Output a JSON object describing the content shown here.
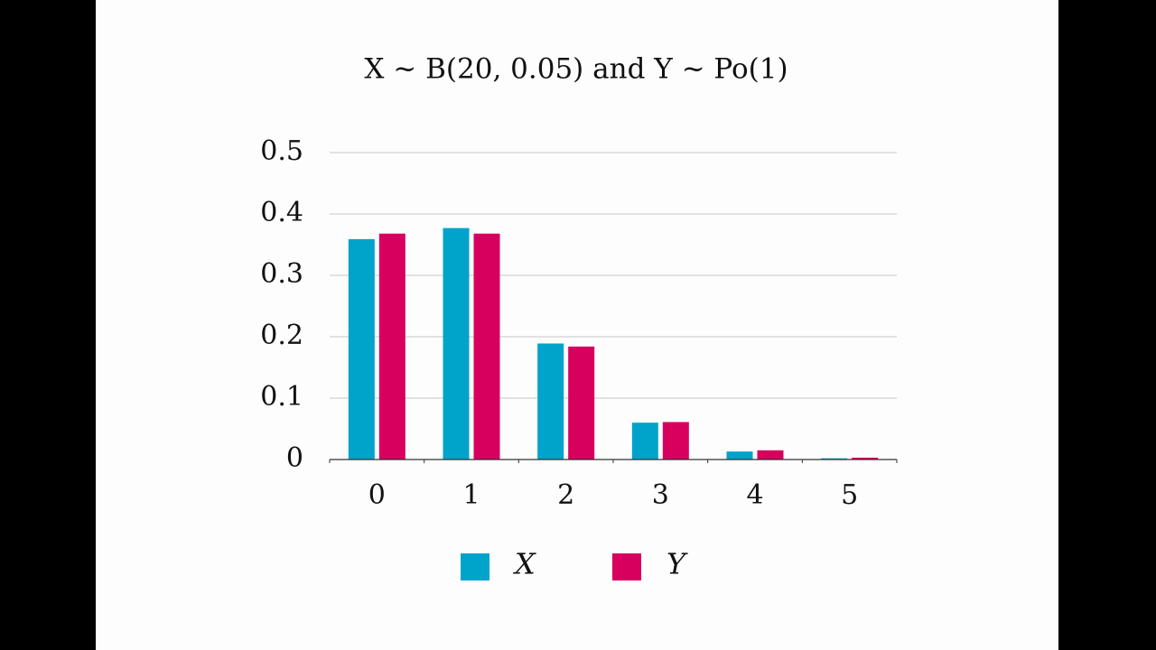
{
  "chart_data": {
    "type": "bar",
    "title": "X ~ B(20, 0.05) and Y ~ Po(1)",
    "categories": [
      "0",
      "1",
      "2",
      "3",
      "4",
      "5"
    ],
    "series": [
      {
        "name": "X",
        "color": "#00a3c9",
        "values": [
          0.359,
          0.377,
          0.189,
          0.06,
          0.013,
          0.002
        ]
      },
      {
        "name": "Y",
        "color": "#d7005f",
        "values": [
          0.368,
          0.368,
          0.184,
          0.061,
          0.015,
          0.003
        ]
      }
    ],
    "ylim": [
      0,
      0.5
    ],
    "yticks": [
      0,
      0.1,
      0.2,
      0.3,
      0.4,
      0.5
    ],
    "grid": true,
    "legend": "bottom"
  }
}
